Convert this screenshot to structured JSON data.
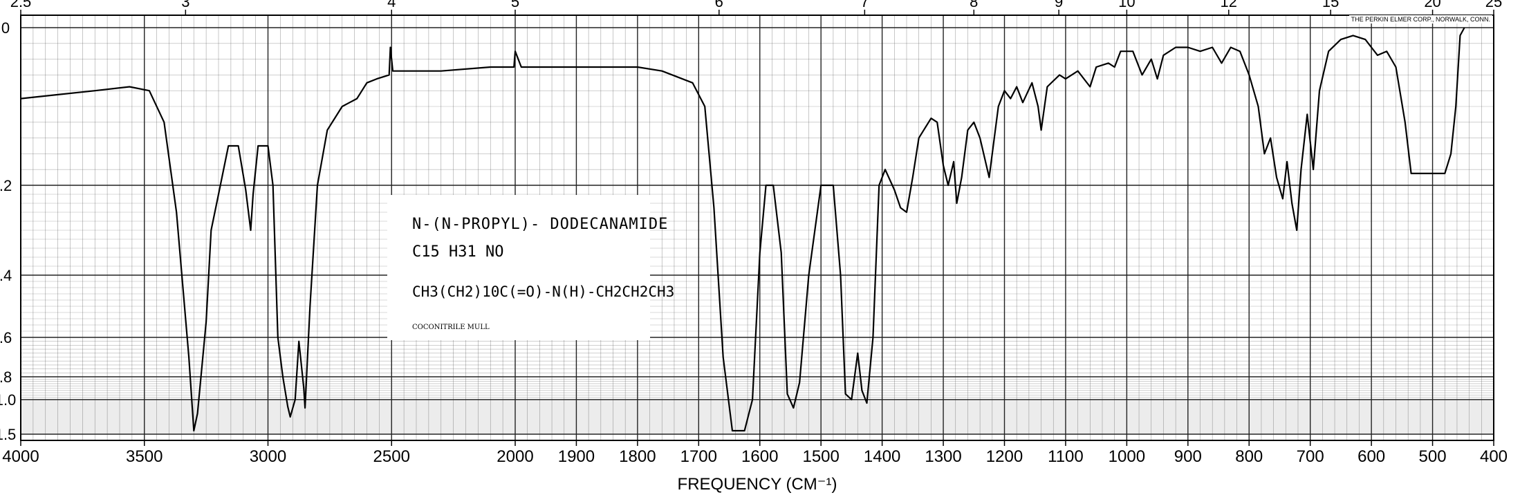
{
  "header": {
    "corp": "THE PERKIN ELMER CORP., NORWALK, CONN."
  },
  "compound": {
    "name": "N-(N-PROPYL)- DODECANAMIDE",
    "formula": "C15 H31 NO",
    "structure": "CH3(CH2)10C(=O)-N(H)-CH2CH2CH3",
    "sample": "COCONITRILE MULL"
  },
  "chart_data": {
    "type": "line",
    "title": "",
    "xlabel": "FREQUENCY (CM⁻¹)",
    "ylabel": "",
    "x_ticks": [
      4000,
      3500,
      3000,
      2500,
      2000,
      1900,
      1800,
      1700,
      1600,
      1500,
      1400,
      1300,
      1200,
      1100,
      1000,
      900,
      800,
      700,
      600,
      500,
      400
    ],
    "y_ticks": [
      "0",
      ".2",
      ".4",
      ".6",
      ".8",
      "1.0",
      "1.5"
    ],
    "y_values": [
      0,
      0.2,
      0.4,
      0.6,
      0.8,
      1.0,
      1.5
    ],
    "top_ticks": [
      "2.5",
      "3",
      "4",
      "5",
      "6",
      "7",
      "8",
      "9",
      "10",
      "12",
      "15",
      "20",
      "25"
    ],
    "top_values": [
      2.5,
      3,
      4,
      5,
      6,
      7,
      8,
      9,
      10,
      12,
      15,
      20,
      25
    ],
    "xlim": [
      4000,
      400
    ],
    "ylim": [
      0,
      1.5
    ],
    "grid": true,
    "line_color": "#000000",
    "grid_color": "#555555",
    "series": [
      {
        "values": [
          [
            4000,
            0.09
          ],
          [
            3850,
            0.085
          ],
          [
            3700,
            0.08
          ],
          [
            3560,
            0.075
          ],
          [
            3480,
            0.08
          ],
          [
            3420,
            0.12
          ],
          [
            3370,
            0.26
          ],
          [
            3320,
            0.7
          ],
          [
            3300,
            1.45
          ],
          [
            3285,
            1.2
          ],
          [
            3250,
            0.55
          ],
          [
            3230,
            0.3
          ],
          [
            3200,
            0.22
          ],
          [
            3160,
            0.15
          ],
          [
            3120,
            0.15
          ],
          [
            3090,
            0.21
          ],
          [
            3070,
            0.3
          ],
          [
            3060,
            0.22
          ],
          [
            3040,
            0.15
          ],
          [
            3000,
            0.15
          ],
          [
            2980,
            0.2
          ],
          [
            2960,
            0.6
          ],
          [
            2940,
            0.8
          ],
          [
            2920,
            1.1
          ],
          [
            2910,
            1.25
          ],
          [
            2890,
            1.0
          ],
          [
            2875,
            0.62
          ],
          [
            2855,
            0.9
          ],
          [
            2850,
            1.12
          ],
          [
            2830,
            0.5
          ],
          [
            2800,
            0.2
          ],
          [
            2760,
            0.13
          ],
          [
            2700,
            0.1
          ],
          [
            2640,
            0.09
          ],
          [
            2600,
            0.07
          ],
          [
            2560,
            0.065
          ],
          [
            2510,
            0.06
          ],
          [
            2505,
            0.025
          ],
          [
            2495,
            0.055
          ],
          [
            2300,
            0.055
          ],
          [
            2100,
            0.05
          ],
          [
            2005,
            0.05
          ],
          [
            2000,
            0.03
          ],
          [
            1990,
            0.05
          ],
          [
            1900,
            0.05
          ],
          [
            1800,
            0.05
          ],
          [
            1760,
            0.055
          ],
          [
            1710,
            0.07
          ],
          [
            1690,
            0.1
          ],
          [
            1675,
            0.25
          ],
          [
            1660,
            0.7
          ],
          [
            1645,
            1.45
          ],
          [
            1625,
            1.45
          ],
          [
            1612,
            1.0
          ],
          [
            1600,
            0.35
          ],
          [
            1590,
            0.2
          ],
          [
            1578,
            0.2
          ],
          [
            1565,
            0.35
          ],
          [
            1555,
            0.95
          ],
          [
            1545,
            1.12
          ],
          [
            1535,
            0.85
          ],
          [
            1520,
            0.4
          ],
          [
            1500,
            0.2
          ],
          [
            1480,
            0.2
          ],
          [
            1468,
            0.4
          ],
          [
            1460,
            0.95
          ],
          [
            1450,
            1.0
          ],
          [
            1440,
            0.68
          ],
          [
            1433,
            0.92
          ],
          [
            1425,
            1.05
          ],
          [
            1415,
            0.6
          ],
          [
            1405,
            0.2
          ],
          [
            1395,
            0.18
          ],
          [
            1380,
            0.21
          ],
          [
            1370,
            0.25
          ],
          [
            1360,
            0.26
          ],
          [
            1350,
            0.19
          ],
          [
            1340,
            0.14
          ],
          [
            1320,
            0.115
          ],
          [
            1310,
            0.12
          ],
          [
            1300,
            0.175
          ],
          [
            1292,
            0.2
          ],
          [
            1283,
            0.17
          ],
          [
            1278,
            0.24
          ],
          [
            1270,
            0.19
          ],
          [
            1260,
            0.13
          ],
          [
            1250,
            0.12
          ],
          [
            1240,
            0.14
          ],
          [
            1225,
            0.19
          ],
          [
            1210,
            0.1
          ],
          [
            1200,
            0.08
          ],
          [
            1190,
            0.09
          ],
          [
            1180,
            0.075
          ],
          [
            1170,
            0.095
          ],
          [
            1155,
            0.07
          ],
          [
            1145,
            0.1
          ],
          [
            1140,
            0.13
          ],
          [
            1130,
            0.075
          ],
          [
            1110,
            0.06
          ],
          [
            1100,
            0.065
          ],
          [
            1080,
            0.055
          ],
          [
            1060,
            0.075
          ],
          [
            1050,
            0.05
          ],
          [
            1030,
            0.045
          ],
          [
            1020,
            0.05
          ],
          [
            1010,
            0.03
          ],
          [
            990,
            0.03
          ],
          [
            975,
            0.06
          ],
          [
            960,
            0.04
          ],
          [
            950,
            0.065
          ],
          [
            940,
            0.035
          ],
          [
            920,
            0.025
          ],
          [
            900,
            0.025
          ],
          [
            880,
            0.03
          ],
          [
            860,
            0.025
          ],
          [
            845,
            0.045
          ],
          [
            830,
            0.025
          ],
          [
            815,
            0.03
          ],
          [
            800,
            0.06
          ],
          [
            785,
            0.1
          ],
          [
            775,
            0.16
          ],
          [
            765,
            0.14
          ],
          [
            755,
            0.19
          ],
          [
            745,
            0.23
          ],
          [
            738,
            0.17
          ],
          [
            730,
            0.24
          ],
          [
            722,
            0.3
          ],
          [
            715,
            0.18
          ],
          [
            705,
            0.11
          ],
          [
            695,
            0.18
          ],
          [
            685,
            0.08
          ],
          [
            670,
            0.03
          ],
          [
            650,
            0.015
          ],
          [
            630,
            0.01
          ],
          [
            610,
            0.015
          ],
          [
            600,
            0.025
          ],
          [
            590,
            0.035
          ],
          [
            575,
            0.03
          ],
          [
            560,
            0.05
          ],
          [
            545,
            0.12
          ],
          [
            535,
            0.185
          ],
          [
            510,
            0.185
          ],
          [
            480,
            0.185
          ],
          [
            470,
            0.16
          ],
          [
            462,
            0.1
          ],
          [
            455,
            0.01
          ],
          [
            448,
            0.0
          ]
        ]
      }
    ]
  }
}
